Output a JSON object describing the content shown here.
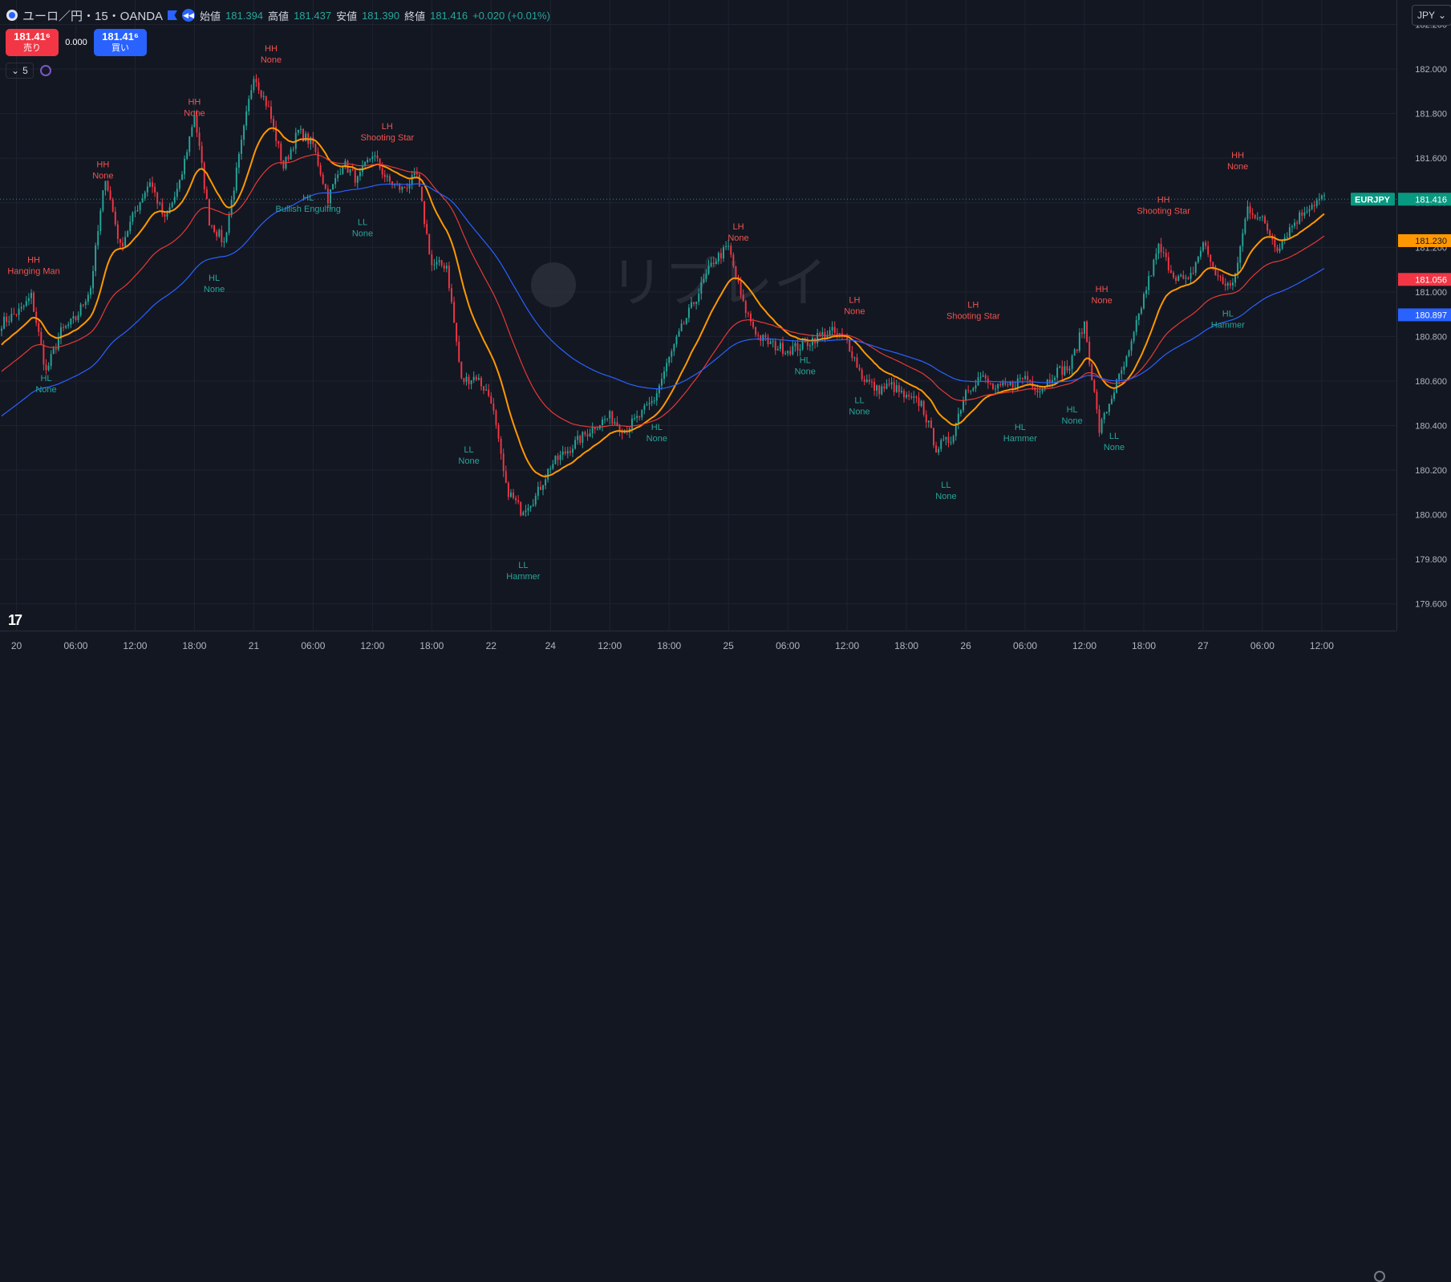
{
  "header": {
    "symbol": "ユーロ／円・15・OANDA",
    "open_label": "始値",
    "open": "181.394",
    "high_label": "高値",
    "high": "181.437",
    "low_label": "安値",
    "low": "181.390",
    "close_label": "終値",
    "close": "181.416",
    "change": "+0.020 (+0.01%)"
  },
  "trade": {
    "sell_price": "181.41⁶",
    "sell_label": "売り",
    "spread": "0.000",
    "buy_price": "181.41⁶",
    "buy_label": "買い"
  },
  "indicator_count": "5",
  "currency": "JPY",
  "watermark": "リプレイ",
  "logo": "17",
  "colors": {
    "up": "#26a69a",
    "down": "#f23645",
    "ma_fast": "#ff9800",
    "ma_mid": "#e53935",
    "ma_slow": "#2962ff"
  },
  "chart_data": {
    "type": "candlestick",
    "symbol": "EURJPY",
    "ylim": [
      179.48,
      182.31
    ],
    "y_ticks": [
      "182.200",
      "182.000",
      "181.800",
      "181.600",
      "181.400",
      "181.200",
      "181.000",
      "180.800",
      "180.600",
      "180.400",
      "180.200",
      "180.000",
      "179.800",
      "179.600"
    ],
    "x_ticks": [
      {
        "label": "20",
        "i": 6
      },
      {
        "label": "06:00",
        "i": 30
      },
      {
        "label": "12:00",
        "i": 54
      },
      {
        "label": "18:00",
        "i": 78
      },
      {
        "label": "21",
        "i": 102
      },
      {
        "label": "06:00",
        "i": 126
      },
      {
        "label": "12:00",
        "i": 150
      },
      {
        "label": "18:00",
        "i": 174
      },
      {
        "label": "22",
        "i": 198
      },
      {
        "label": "24",
        "i": 222
      },
      {
        "label": "12:00",
        "i": 246
      },
      {
        "label": "18:00",
        "i": 270
      },
      {
        "label": "25",
        "i": 294
      },
      {
        "label": "06:00",
        "i": 318
      },
      {
        "label": "12:00",
        "i": 342
      },
      {
        "label": "18:00",
        "i": 366
      },
      {
        "label": "26",
        "i": 390
      },
      {
        "label": "06:00",
        "i": 414
      },
      {
        "label": "12:00",
        "i": 438
      },
      {
        "label": "18:00",
        "i": 462
      },
      {
        "label": "27",
        "i": 486
      },
      {
        "label": "06:00",
        "i": 510
      },
      {
        "label": "12:00",
        "i": 534
      }
    ],
    "keypoints": [
      [
        0,
        180.86
      ],
      [
        8,
        180.92
      ],
      [
        12,
        180.98
      ],
      [
        18,
        180.64
      ],
      [
        24,
        180.82
      ],
      [
        30,
        180.88
      ],
      [
        36,
        181.02
      ],
      [
        42,
        181.52
      ],
      [
        48,
        181.2
      ],
      [
        54,
        181.36
      ],
      [
        60,
        181.5
      ],
      [
        66,
        181.32
      ],
      [
        72,
        181.48
      ],
      [
        78,
        181.8
      ],
      [
        84,
        181.32
      ],
      [
        90,
        181.22
      ],
      [
        96,
        181.6
      ],
      [
        102,
        181.98
      ],
      [
        108,
        181.82
      ],
      [
        114,
        181.56
      ],
      [
        120,
        181.72
      ],
      [
        126,
        181.66
      ],
      [
        132,
        181.42
      ],
      [
        138,
        181.58
      ],
      [
        144,
        181.5
      ],
      [
        150,
        181.62
      ],
      [
        156,
        181.5
      ],
      [
        162,
        181.46
      ],
      [
        168,
        181.52
      ],
      [
        174,
        181.12
      ],
      [
        180,
        181.12
      ],
      [
        186,
        180.6
      ],
      [
        192,
        180.62
      ],
      [
        198,
        180.52
      ],
      [
        204,
        180.12
      ],
      [
        210,
        180.02
      ],
      [
        216,
        180.08
      ],
      [
        222,
        180.22
      ],
      [
        228,
        180.28
      ],
      [
        234,
        180.34
      ],
      [
        240,
        180.4
      ],
      [
        246,
        180.44
      ],
      [
        252,
        180.38
      ],
      [
        258,
        180.44
      ],
      [
        264,
        180.52
      ],
      [
        270,
        180.7
      ],
      [
        276,
        180.86
      ],
      [
        282,
        181.0
      ],
      [
        288,
        181.14
      ],
      [
        294,
        181.2
      ],
      [
        300,
        180.94
      ],
      [
        306,
        180.8
      ],
      [
        312,
        180.76
      ],
      [
        318,
        180.74
      ],
      [
        324,
        180.76
      ],
      [
        330,
        180.8
      ],
      [
        336,
        180.82
      ],
      [
        342,
        180.78
      ],
      [
        348,
        180.62
      ],
      [
        354,
        180.56
      ],
      [
        360,
        180.58
      ],
      [
        366,
        180.52
      ],
      [
        372,
        180.5
      ],
      [
        378,
        180.3
      ],
      [
        384,
        180.34
      ],
      [
        390,
        180.56
      ],
      [
        396,
        180.62
      ],
      [
        402,
        180.56
      ],
      [
        408,
        180.58
      ],
      [
        414,
        180.62
      ],
      [
        420,
        180.56
      ],
      [
        426,
        180.64
      ],
      [
        432,
        180.66
      ],
      [
        438,
        180.86
      ],
      [
        444,
        180.38
      ],
      [
        450,
        180.56
      ],
      [
        456,
        180.72
      ],
      [
        462,
        180.98
      ],
      [
        468,
        181.2
      ],
      [
        474,
        181.08
      ],
      [
        480,
        181.04
      ],
      [
        486,
        181.22
      ],
      [
        492,
        181.06
      ],
      [
        498,
        181.02
      ],
      [
        504,
        181.38
      ],
      [
        510,
        181.32
      ],
      [
        516,
        181.2
      ],
      [
        522,
        181.3
      ],
      [
        528,
        181.38
      ],
      [
        534,
        181.42
      ]
    ],
    "moving_averages": [
      {
        "name": "ma_fast",
        "color": "#ff9800",
        "period": 20
      },
      {
        "name": "ma_mid",
        "color": "#e53935",
        "period": 50
      },
      {
        "name": "ma_slow",
        "color": "#2962ff",
        "period": 100
      }
    ],
    "last_prices": [
      {
        "label": "EURJPY",
        "value": "181.416",
        "color": "#089981",
        "y": 181.416
      },
      {
        "label": "",
        "value": "181.230",
        "color": "#ff9800",
        "y": 181.23
      },
      {
        "label": "",
        "value": "181.056",
        "color": "#f23645",
        "y": 181.056
      },
      {
        "label": "",
        "value": "180.897",
        "color": "#2962ff",
        "y": 180.897
      }
    ],
    "annotations": [
      {
        "t1": "HH",
        "t2": "Hanging Man",
        "i": 13,
        "y": 181.13,
        "kind": "high"
      },
      {
        "t1": "HL",
        "t2": "None",
        "i": 18,
        "y": 180.6,
        "kind": "low"
      },
      {
        "t1": "HH",
        "t2": "None",
        "i": 41,
        "y": 181.56,
        "kind": "high"
      },
      {
        "t1": "HH",
        "t2": "None",
        "i": 78,
        "y": 181.84,
        "kind": "high"
      },
      {
        "t1": "HL",
        "t2": "None",
        "i": 86,
        "y": 181.05,
        "kind": "low"
      },
      {
        "t1": "HH",
        "t2": "None",
        "i": 109,
        "y": 182.08,
        "kind": "high"
      },
      {
        "t1": "HL",
        "t2": "Bullish Engulfing",
        "i": 124,
        "y": 181.41,
        "kind": "low"
      },
      {
        "t1": "LH",
        "t2": "Shooting Star",
        "i": 156,
        "y": 181.73,
        "kind": "high"
      },
      {
        "t1": "LL",
        "t2": "None",
        "i": 146,
        "y": 181.3,
        "kind": "low"
      },
      {
        "t1": "LL",
        "t2": "None",
        "i": 189,
        "y": 180.28,
        "kind": "low"
      },
      {
        "t1": "LL",
        "t2": "Hammer",
        "i": 211,
        "y": 179.76,
        "kind": "low"
      },
      {
        "t1": "HL",
        "t2": "None",
        "i": 265,
        "y": 180.38,
        "kind": "low"
      },
      {
        "t1": "LH",
        "t2": "None",
        "i": 298,
        "y": 181.28,
        "kind": "high"
      },
      {
        "t1": "HL",
        "t2": "None",
        "i": 325,
        "y": 180.68,
        "kind": "low"
      },
      {
        "t1": "LH",
        "t2": "None",
        "i": 345,
        "y": 180.95,
        "kind": "high"
      },
      {
        "t1": "LL",
        "t2": "None",
        "i": 347,
        "y": 180.5,
        "kind": "low"
      },
      {
        "t1": "LH",
        "t2": "Shooting Star",
        "i": 393,
        "y": 180.93,
        "kind": "high"
      },
      {
        "t1": "LL",
        "t2": "None",
        "i": 382,
        "y": 180.12,
        "kind": "low"
      },
      {
        "t1": "HL",
        "t2": "Hammer",
        "i": 412,
        "y": 180.38,
        "kind": "low"
      },
      {
        "t1": "HL",
        "t2": "None",
        "i": 433,
        "y": 180.46,
        "kind": "low"
      },
      {
        "t1": "HH",
        "t2": "None",
        "i": 445,
        "y": 181.0,
        "kind": "high"
      },
      {
        "t1": "LL",
        "t2": "None",
        "i": 450,
        "y": 180.34,
        "kind": "low"
      },
      {
        "t1": "HH",
        "t2": "Shooting Star",
        "i": 470,
        "y": 181.4,
        "kind": "high"
      },
      {
        "t1": "HL",
        "t2": "Hammer",
        "i": 496,
        "y": 180.89,
        "kind": "low"
      },
      {
        "t1": "HH",
        "t2": "None",
        "i": 500,
        "y": 181.6,
        "kind": "high"
      }
    ]
  }
}
